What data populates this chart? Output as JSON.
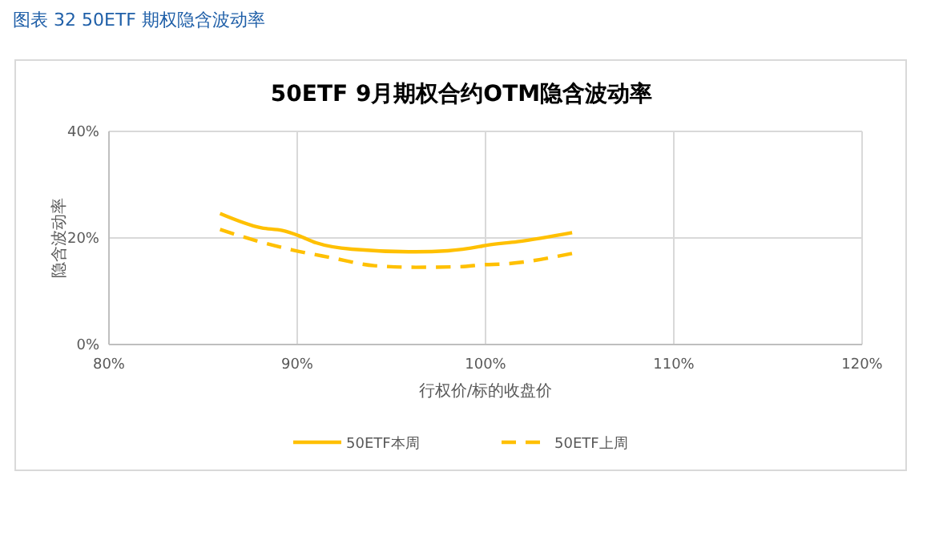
{
  "chart_data": {
    "type": "line",
    "title": "50ETF 9月期权合约OTM隐含波动率",
    "subtitle": "图表 32 50ETF 期权隐含波动率",
    "xlabel": "行权价/标的收盘价",
    "ylabel": "隐含波动率",
    "xlim": [
      80,
      120
    ],
    "xticks": [
      {
        "value": 80,
        "label": "80%"
      },
      {
        "value": 90,
        "label": "90%"
      },
      {
        "value": 100,
        "label": "100%"
      },
      {
        "value": 110,
        "label": "110%"
      },
      {
        "value": 120,
        "label": "120%"
      }
    ],
    "ylim": [
      0,
      40
    ],
    "yticks": [
      {
        "value": 0,
        "label": "0%"
      },
      {
        "value": 20,
        "label": "20%"
      },
      {
        "value": 40,
        "label": "40%"
      }
    ],
    "grid": true,
    "legend": "bottom",
    "marker": "none",
    "series": [
      {
        "name": "50ETF本周",
        "color": "#ffc000",
        "line_style": "solid",
        "x": [
          85.9,
          88.1,
          89.2,
          90.1,
          91.0,
          92.9,
          96.3,
          98.0,
          99.7,
          100.0,
          101.7,
          104.6
        ],
        "values": [
          24.6,
          21.9,
          21.4,
          20.4,
          19.1,
          17.9,
          17.4,
          17.6,
          18.4,
          18.6,
          19.3,
          21.0
        ]
      },
      {
        "name": "50ETF上周",
        "color": "#ffc000",
        "line_style": "dashed",
        "x": [
          85.9,
          87.8,
          89.8,
          91.8,
          94.1,
          96.3,
          98.6,
          100.0,
          100.9,
          104.6
        ],
        "values": [
          21.6,
          19.5,
          17.7,
          16.3,
          14.8,
          14.5,
          14.6,
          15.0,
          15.1,
          17.1
        ]
      }
    ]
  }
}
